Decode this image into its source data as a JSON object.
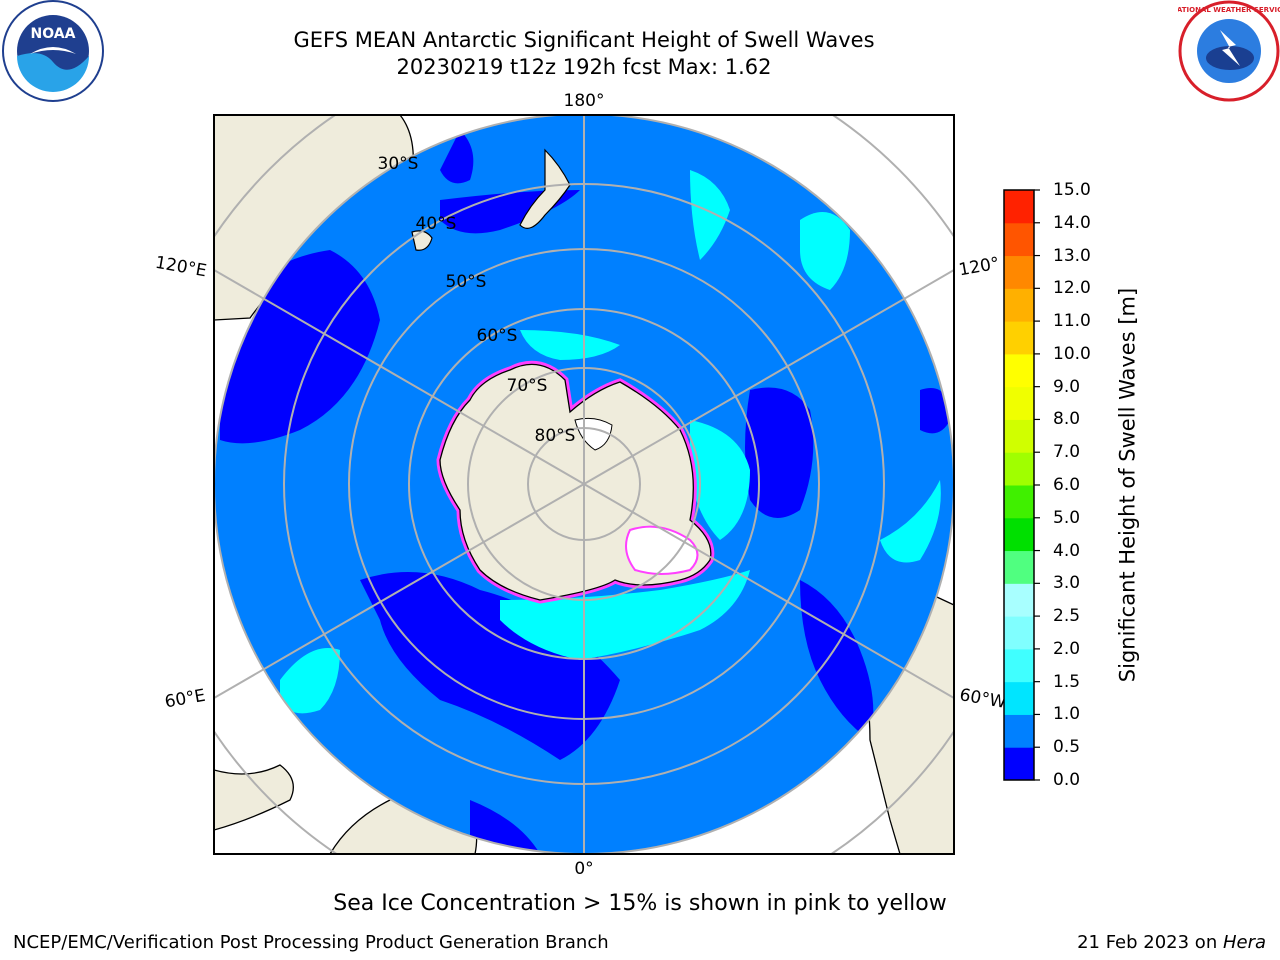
{
  "title": {
    "line1": "GEFS MEAN Antarctic Significant Height of Swell Waves",
    "line2": "20230219 t12z 192h fcst   Max: 1.62"
  },
  "logos": {
    "noaa": {
      "icon": "noaa-logo",
      "text": "NOAA"
    },
    "nws": {
      "icon": "national-weather-service-logo",
      "text": "NATIONAL WEATHER SERVICE"
    }
  },
  "map": {
    "projection": "south-polar-stereographic",
    "longitude_labels": {
      "top": "180°",
      "bottom": "0°",
      "left_upper": "120°E",
      "left_lower": "60°E",
      "right_upper": "120°",
      "right_lower": "60°W"
    },
    "latitude_labels": [
      "30°S",
      "40°S",
      "50°S",
      "60°S",
      "70°S",
      "80°S"
    ],
    "colors": {
      "land": "#efecdc",
      "ocean_low": "#0000ff",
      "ocean_mid": "#0080ff",
      "ocean_high": "#00ffff",
      "sea_ice": "#ff00ff",
      "grid": "#b0b0b0"
    }
  },
  "colorbar": {
    "label": "Significant Height of Swell Waves [m]",
    "ticks": [
      "0.0",
      "0.5",
      "1.0",
      "1.5",
      "2.0",
      "2.5",
      "3.0",
      "4.0",
      "5.0",
      "6.0",
      "7.0",
      "8.0",
      "9.0",
      "10.0",
      "11.0",
      "12.0",
      "13.0",
      "14.0",
      "15.0"
    ],
    "colors": [
      "#0000ff",
      "#0080ff",
      "#00e5ff",
      "#40ffff",
      "#80ffff",
      "#a8ffff",
      "#50ff80",
      "#00e000",
      "#40f000",
      "#a0ff00",
      "#d0ff00",
      "#f0ff00",
      "#ffff00",
      "#ffd000",
      "#ffb000",
      "#ff8800",
      "#ff5500",
      "#ff2200"
    ]
  },
  "notes": {
    "sea_ice": "Sea Ice Concentration > 15% is shown in pink to yellow"
  },
  "footer": {
    "left": "NCEP/EMC/Verification Post Processing Product Generation Branch",
    "date": "21 Feb 2023 on ",
    "machine": "Hera"
  }
}
